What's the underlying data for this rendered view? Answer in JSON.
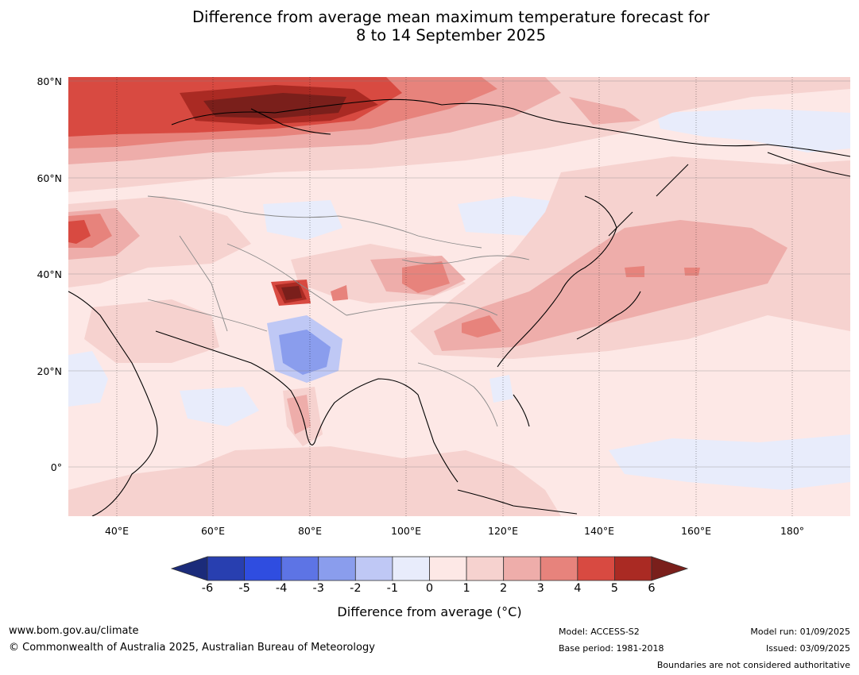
{
  "title": {
    "line1": "Difference from average mean maximum temperature forecast for",
    "line2": "8 to 14 September 2025"
  },
  "map": {
    "lat_labels": [
      "80°N",
      "60°N",
      "40°N",
      "20°N",
      "0°"
    ],
    "lon_labels": [
      "40°E",
      "60°E",
      "80°E",
      "100°E",
      "120°E",
      "140°E",
      "160°E",
      "180°"
    ],
    "lat_range": [
      -10,
      81
    ],
    "lon_range": [
      30,
      192
    ]
  },
  "colorbar": {
    "ticks": [
      "-6",
      "-5",
      "-4",
      "-3",
      "-2",
      "-1",
      "0",
      "1",
      "2",
      "3",
      "4",
      "5",
      "6"
    ],
    "colors": [
      "#1b2b7a",
      "#283fb0",
      "#2f4de0",
      "#5d74e5",
      "#8a9ded",
      "#bfc8f5",
      "#e8ecfb",
      "#fde8e6",
      "#f6d2cf",
      "#eeadaa",
      "#e7837c",
      "#d84a41",
      "#aa2a23",
      "#7a1f1b"
    ],
    "label": "Difference from average (°C)"
  },
  "footer": {
    "website": "www.bom.gov.au/climate",
    "copyright": "© Commonwealth of Australia 2025, Australian Bureau of Meteorology",
    "model": "Model: ACCESS-S2",
    "base_period": "Base period: 1981-2018",
    "model_run": "Model run: 01/09/2025",
    "issued": "Issued: 03/09/2025",
    "disclaimer": "Boundaries are not considered authoritative"
  }
}
